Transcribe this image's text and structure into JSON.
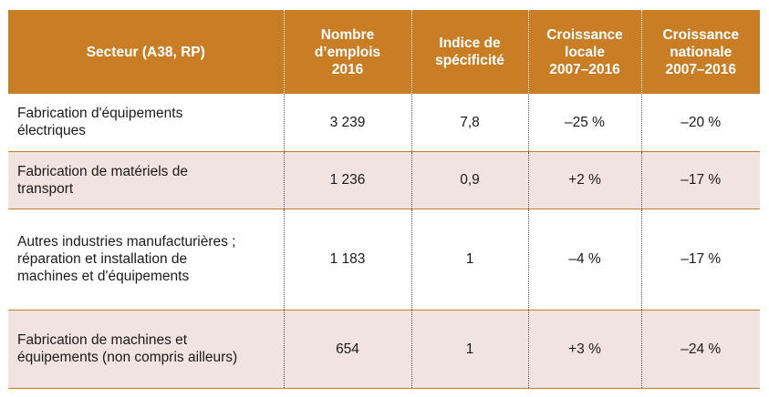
{
  "table": {
    "headers": [
      [
        "Secteur (A38, RP)"
      ],
      [
        "Nombre",
        "d’emplois",
        "2016"
      ],
      [
        "Indice de",
        "spécificité"
      ],
      [
        "Croissance",
        "locale",
        "2007–2016"
      ],
      [
        "Croissance",
        "nationale",
        "2007–2016"
      ]
    ],
    "rows": [
      {
        "secteur": [
          "Fabrication d'équipements",
          "électriques"
        ],
        "emplois": "3 239",
        "indice": "7,8",
        "croissance_locale": "–25 %",
        "croissance_nationale": "–20 %"
      },
      {
        "secteur": [
          "Fabrication de matériels de",
          "transport"
        ],
        "emplois": "1 236",
        "indice": "0,9",
        "croissance_locale": "+2 %",
        "croissance_nationale": "–17 %"
      },
      {
        "secteur": [
          "Autres industries manufacturières ;",
          "réparation et installation de",
          "machines et d'équipements"
        ],
        "emplois": "1 183",
        "indice": "1",
        "croissance_locale": "–4 %",
        "croissance_nationale": "–17 %"
      },
      {
        "secteur": [
          "Fabrication de machines et",
          "équipements (non compris ailleurs)"
        ],
        "emplois": "654",
        "indice": "1",
        "croissance_locale": "+3 %",
        "croissance_nationale": "–24 %"
      }
    ]
  },
  "colors": {
    "header_bg": "#c97d24",
    "header_text": "#ffffff",
    "row_alt_bg": "#f1e4e0",
    "row_bg": "#ffffff",
    "row_border": "#c97d24"
  }
}
